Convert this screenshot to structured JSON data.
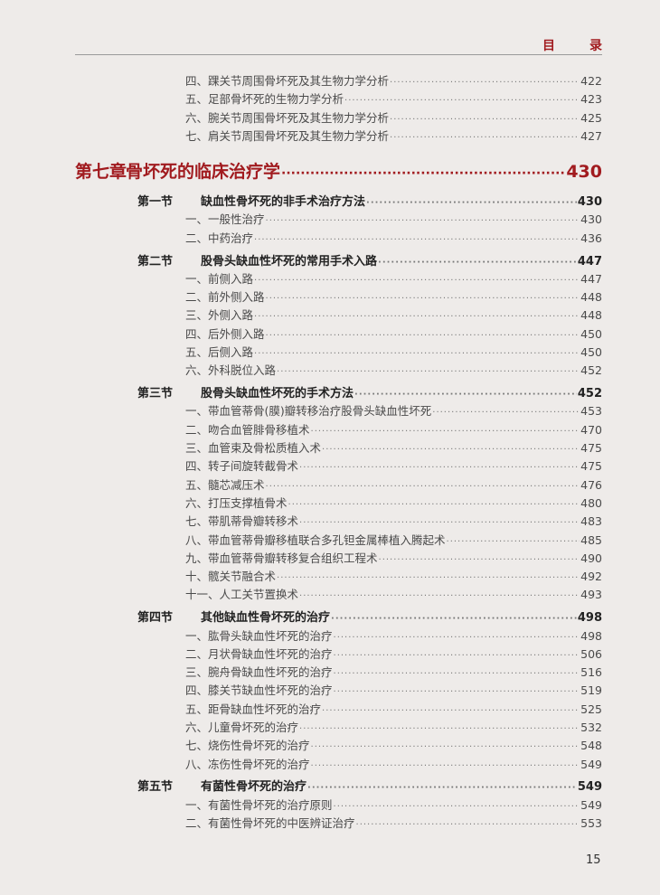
{
  "header": {
    "title_a": "目",
    "title_b": "录"
  },
  "before_items": [
    {
      "label": "四、踝关节周围骨坏死及其生物力学分析",
      "page": "422"
    },
    {
      "label": "五、足部骨坏死的生物力学分析",
      "page": "423"
    },
    {
      "label": "六、腕关节周围骨坏死及其生物力学分析",
      "page": "425"
    },
    {
      "label": "七、肩关节周围骨坏死及其生物力学分析",
      "page": "427"
    }
  ],
  "chapter": {
    "label": "第七章",
    "title": "骨坏死的临床治疗学",
    "page": "430"
  },
  "sections": [
    {
      "label": "第一节",
      "title": "缺血性骨坏死的非手术治疗方法",
      "page": "430",
      "items": [
        {
          "label": "一、一般性治疗",
          "page": "430"
        },
        {
          "label": "二、中药治疗",
          "page": "436"
        }
      ]
    },
    {
      "label": "第二节",
      "title": "股骨头缺血性坏死的常用手术入路",
      "page": "447",
      "items": [
        {
          "label": "一、前侧入路",
          "page": "447"
        },
        {
          "label": "二、前外侧入路",
          "page": "448"
        },
        {
          "label": "三、外侧入路",
          "page": "448"
        },
        {
          "label": "四、后外侧入路",
          "page": "450"
        },
        {
          "label": "五、后侧入路",
          "page": "450"
        },
        {
          "label": "六、外科脱位入路",
          "page": "452"
        }
      ]
    },
    {
      "label": "第三节",
      "title": "股骨头缺血性坏死的手术方法",
      "page": "452",
      "items": [
        {
          "label": "一、带血管蒂骨(膜)瓣转移治疗股骨头缺血性坏死",
          "page": "453"
        },
        {
          "label": "二、吻合血管腓骨移植术",
          "page": "470"
        },
        {
          "label": "三、血管束及骨松质植入术",
          "page": "475"
        },
        {
          "label": "四、转子间旋转截骨术",
          "page": "475"
        },
        {
          "label": "五、髓芯减压术",
          "page": "476"
        },
        {
          "label": "六、打压支撑植骨术",
          "page": "480"
        },
        {
          "label": "七、带肌蒂骨瓣转移术",
          "page": "483"
        },
        {
          "label": "八、带血管蒂骨瓣移植联合多孔钽金属棒植入腾起术",
          "page": "485"
        },
        {
          "label": "九、带血管蒂骨瓣转移复合组织工程术",
          "page": "490"
        },
        {
          "label": "十、髋关节融合术",
          "page": "492"
        },
        {
          "label": "十一、人工关节置换术",
          "page": "493"
        }
      ]
    },
    {
      "label": "第四节",
      "title": "其他缺血性骨坏死的治疗",
      "page": "498",
      "items": [
        {
          "label": "一、肱骨头缺血性坏死的治疗",
          "page": "498"
        },
        {
          "label": "二、月状骨缺血性坏死的治疗",
          "page": "506"
        },
        {
          "label": "三、腕舟骨缺血性坏死的治疗",
          "page": "516"
        },
        {
          "label": "四、膝关节缺血性坏死的治疗",
          "page": "519"
        },
        {
          "label": "五、距骨缺血性坏死的治疗",
          "page": "525"
        },
        {
          "label": "六、儿童骨坏死的治疗",
          "page": "532"
        },
        {
          "label": "七、烧伤性骨坏死的治疗",
          "page": "548"
        },
        {
          "label": "八、冻伤性骨坏死的治疗",
          "page": "549"
        }
      ]
    },
    {
      "label": "第五节",
      "title": "有菌性骨坏死的治疗",
      "page": "549",
      "items": [
        {
          "label": "一、有菌性骨坏死的治疗原则",
          "page": "549"
        },
        {
          "label": "二、有菌性骨坏死的中医辨证治疗",
          "page": "553"
        }
      ]
    }
  ],
  "page_number": "15",
  "colors": {
    "accent": "#a11b1f",
    "background": "#eeebe9"
  }
}
